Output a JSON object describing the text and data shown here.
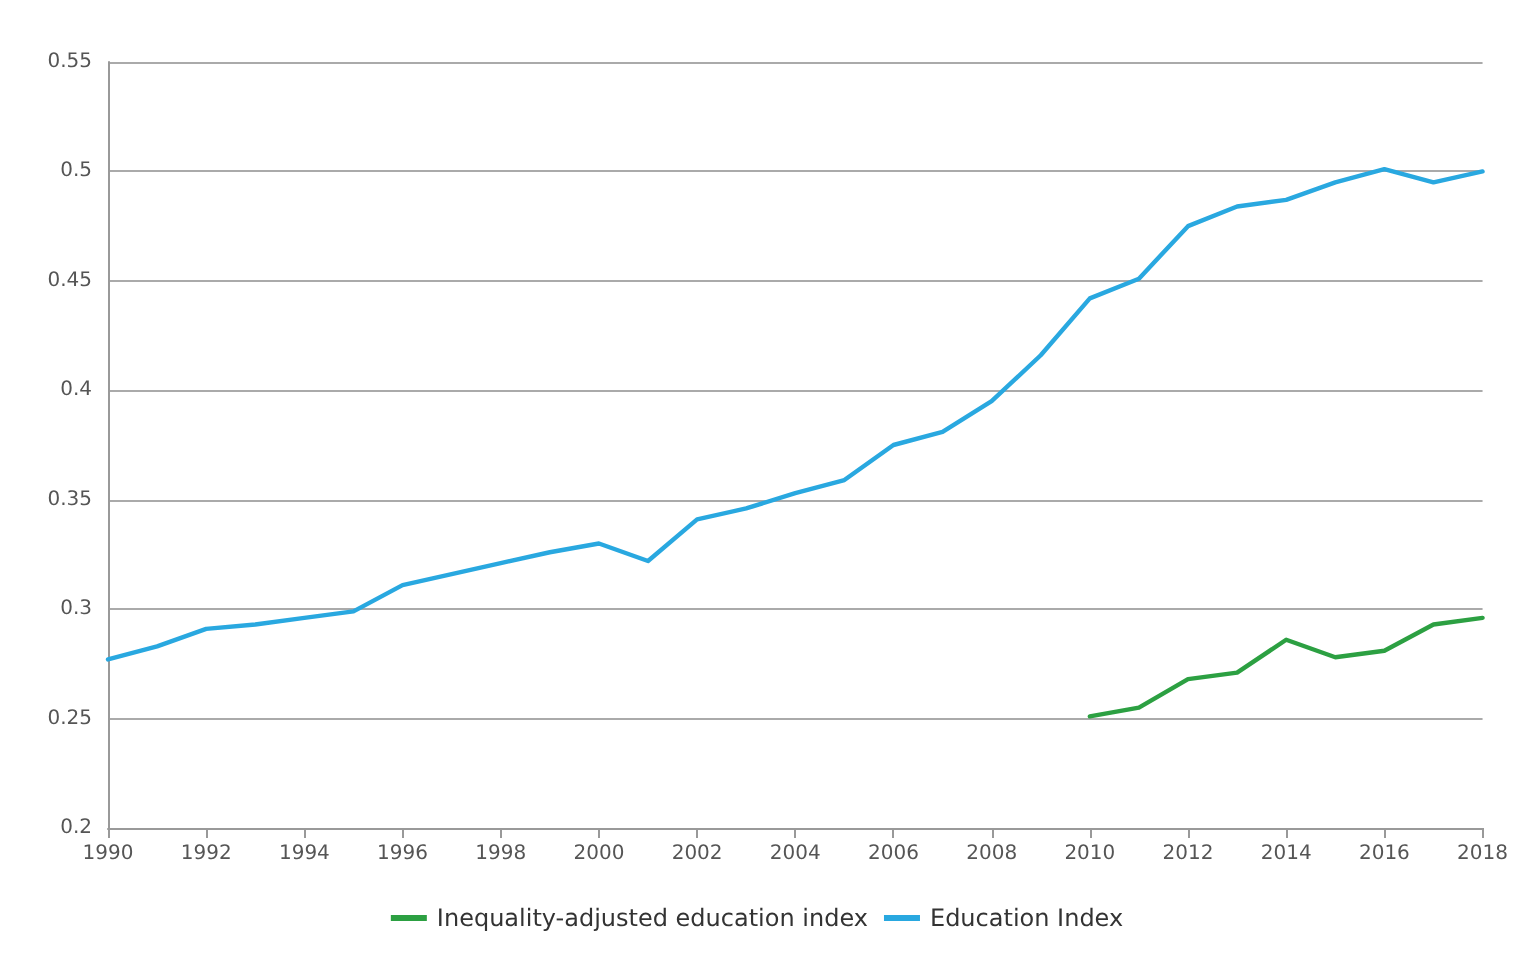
{
  "chart_data": {
    "type": "line",
    "xlim": [
      1990,
      2018
    ],
    "xticks": [
      1990,
      1992,
      1994,
      1996,
      1998,
      2000,
      2002,
      2004,
      2006,
      2008,
      2010,
      2012,
      2014,
      2016,
      2018
    ],
    "ylim": [
      0.2,
      0.55
    ],
    "yticks": [
      0.2,
      0.25,
      0.3,
      0.35,
      0.4,
      0.45,
      0.5,
      0.55
    ],
    "grid": "y",
    "legend": "bottom",
    "marker": "none",
    "line_style": "solid",
    "series": [
      {
        "name": "Inequality-adjusted education index",
        "color": "#2ca042",
        "x": [
          2010,
          2011,
          2012,
          2013,
          2014,
          2015,
          2016,
          2017,
          2018
        ],
        "values": [
          0.251,
          0.255,
          0.268,
          0.271,
          0.286,
          0.278,
          0.281,
          0.293,
          0.296
        ]
      },
      {
        "name": "Education Index",
        "color": "#29a8e0",
        "x": [
          1990,
          1991,
          1992,
          1993,
          1994,
          1995,
          1996,
          1997,
          1998,
          1999,
          2000,
          2001,
          2002,
          2003,
          2004,
          2005,
          2006,
          2007,
          2008,
          2009,
          2010,
          2011,
          2012,
          2013,
          2014,
          2015,
          2016,
          2017,
          2018
        ],
        "values": [
          0.277,
          0.283,
          0.291,
          0.293,
          0.296,
          0.299,
          0.311,
          0.316,
          0.321,
          0.326,
          0.33,
          0.322,
          0.341,
          0.346,
          0.353,
          0.359,
          0.375,
          0.381,
          0.395,
          0.416,
          0.442,
          0.451,
          0.475,
          0.484,
          0.487,
          0.495,
          0.501,
          0.495,
          0.5
        ]
      }
    ]
  }
}
